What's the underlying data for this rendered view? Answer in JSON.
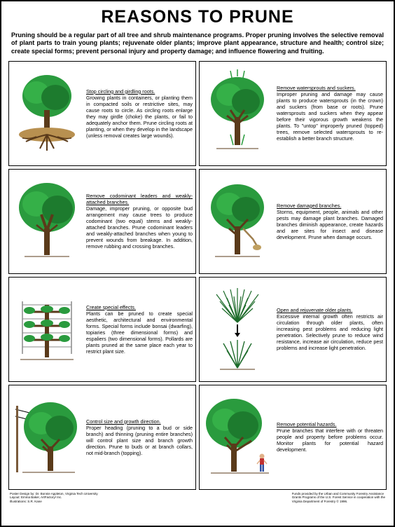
{
  "title": "REASONS TO PRUNE",
  "intro": "Pruning should be a regular part of all tree and shrub maintenance programs. Proper pruning involves the selective removal of plant parts to train young plants; rejuvenate older plants; improve plant appearance, structure and health; control size; create special forms; prevent personal injury and property damage; and influence flowering and fruiting.",
  "colors": {
    "canopy": "#2a9b3e",
    "canopy_dark": "#1d6b2a",
    "trunk": "#5a3a1a",
    "ground": "#b89050",
    "person_shirt": "#c03030",
    "person_pants": "#3050a0",
    "border": "#000000",
    "bg": "#ffffff"
  },
  "cells": [
    {
      "illus": "roots",
      "heading": "Stop circling and girdling roots.",
      "body": "Growing plants in containers, or planting them in compacted soils or restrictive sites, may cause roots to circle. As circling roots enlarge they may girdle (choke) the plants, or fail to adequately anchor them. Prune circling roots at planting, or when they develop in the landscape (unless removal creates large wounds)."
    },
    {
      "illus": "watersprouts",
      "heading": "Remove watersprouts and suckers.",
      "body": "Improper pruning and damage may cause plants to produce watersprouts (in the crown) and suckers (from base or roots). Prune watersprouts and suckers when they appear before their vigorous growth weakens the plants. To \"untop\" improperly pruned (topped) trees, remove selected watersprouts to re-establish a better branch structure."
    },
    {
      "illus": "codominant",
      "heading": "Remove codominant leaders and weakly-attached branches.",
      "body": "Damage, improper pruning, or opposite bud arrangement may cause trees to produce codominant (two equal) stems and weakly-attached branches. Prune codominant leaders and weakly-attached branches when young to prevent wounds from breakage. In addition, remove rubbing and crossing branches."
    },
    {
      "illus": "damaged",
      "heading": "Remove damaged branches.",
      "body": "Storms, equipment, people, animals and other pests may damage plant branches. Damaged branches diminish appearance, create hazards and are sites for insect and disease development. Prune when damage occurs."
    },
    {
      "illus": "special",
      "heading": "Create special effects.",
      "body": "Plants can be pruned to create special aesthetic, architectural and environmental forms. Special forms include bonsai (dwarfing), topiaries (three dimensional forms) and espaliers (two dimensional forms). Pollards are plants pruned at the same place each year to restrict plant size."
    },
    {
      "illus": "rejuvenate",
      "heading": "Open and rejuvenate older plants.",
      "body": "Excessive internal growth often restricts air circulation through older plants, often increasing pest problems and reducing light penetration. Selectively prune to reduce wind resistance, increase air circulation, reduce pest problems and increase light penetration."
    },
    {
      "illus": "controlsize",
      "heading": "Control size and growth direction.",
      "body": "Proper heading (pruning to a bud or side branch) and thinning (pruning entire branches) will control plant size and branch growth direction. Prune to buds or at branch collars, not mid-branch (topping)."
    },
    {
      "illus": "hazards",
      "heading": "Remove potential hazards.",
      "body": "Prune branches that interfere with or threaten people and property before problems occur. Monitor plants for potential hazard development."
    }
  ],
  "footer_left": "Poster Design by:  Dr. Bonnie Appleton, Virginia Tech University\nLayout:  Emma Baker, ArtFactory! Inc.\nIllustrations:  S.R. Kane",
  "footer_right": "Funds provided by the Urban and Community Forestry Assistance\nGrants Programs of the U.S. Forest Service in cooperation with the\nVirginia Department of Forestry © 1996."
}
